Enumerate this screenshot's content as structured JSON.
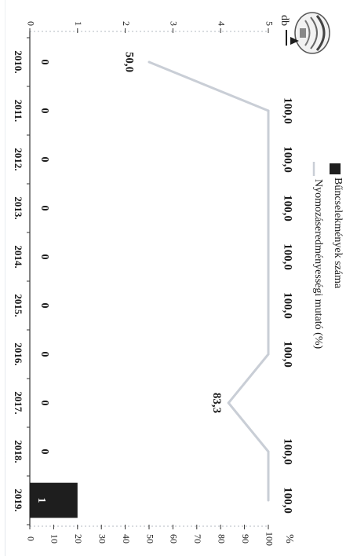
{
  "chart_data": {
    "type": "bar",
    "orientation": "rotated-90-clockwise",
    "categories": [
      "2010.",
      "2011.",
      "2012.",
      "2013.",
      "2014.",
      "2015.",
      "2016.",
      "2017.",
      "2018.",
      "2019."
    ],
    "series": [
      {
        "name": "Bűncselekmények száma",
        "type": "bar",
        "axis": "db",
        "values": [
          0,
          0,
          0,
          0,
          0,
          0,
          0,
          0,
          0,
          1
        ],
        "labels": [
          "0",
          "0",
          "0",
          "0",
          "0",
          "0",
          "0",
          "0",
          "0",
          "1"
        ],
        "color": "#1e1e1e"
      },
      {
        "name": "Nyomozáseredményességi mutató (%)",
        "type": "line",
        "axis": "%",
        "values": [
          50.0,
          100.0,
          100.0,
          100.0,
          100.0,
          100.0,
          100.0,
          83.3,
          100.0,
          100.0
        ],
        "labels": [
          "50,0",
          "100,0",
          "100,0",
          "100,0",
          "100,0",
          "100,0",
          "100,0",
          "83,3",
          "100,0",
          "100,0"
        ],
        "color": "#c9ced6"
      }
    ],
    "axes": {
      "db": {
        "label": "db",
        "ticks": [
          "0",
          "1",
          "2",
          "3",
          "4",
          "5"
        ],
        "range": [
          0,
          5
        ]
      },
      "percent": {
        "label": "%",
        "ticks": [
          "0",
          "10",
          "20",
          "30",
          "40",
          "50",
          "60",
          "70",
          "80",
          "90",
          "100"
        ],
        "range": [
          0,
          100
        ]
      }
    },
    "legend": {
      "placement": "top",
      "entries": [
        "Bűncselekmények száma",
        "Nyomozáseredményességi mutató (%)"
      ]
    }
  },
  "colors": {
    "bar": "#1e1e1e",
    "line": "#c9ced6",
    "axis": "#333333",
    "text": "#1a1a1a"
  },
  "icons": {
    "logo": "police-crest-logo",
    "arrow": "caret-down-icon"
  }
}
